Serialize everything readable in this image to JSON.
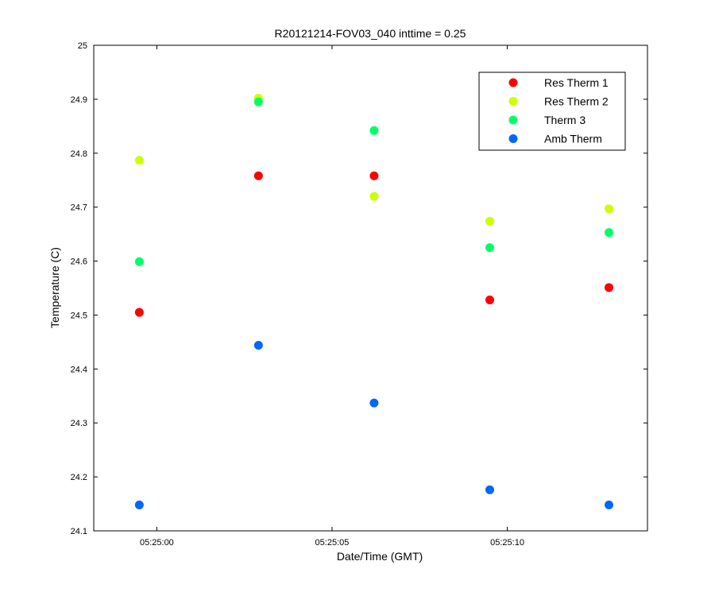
{
  "chart_data": {
    "type": "scatter",
    "title": "R20121214-FOV03_040 inttime = 0.25",
    "xlabel": "Date/Time (GMT)",
    "ylabel": "Temperature (C)",
    "xlim": [
      "05:24:58.2",
      "05:25:14.0"
    ],
    "ylim": [
      24.1,
      25.0
    ],
    "x_ticks": [
      "05:25:00",
      "05:25:05",
      "05:25:10"
    ],
    "y_ticks": [
      "24.1",
      "24.2",
      "24.3",
      "24.4",
      "24.5",
      "24.6",
      "24.7",
      "24.8",
      "24.9",
      "25"
    ],
    "grid": false,
    "legend_position": "top-right",
    "x": [
      "05:24:59.5",
      "05:25:02.9",
      "05:25:06.2",
      "05:25:09.5",
      "05:25:12.9"
    ],
    "series": [
      {
        "name": "Res Therm 1",
        "color": "#ff0000",
        "values": [
          24.505,
          24.758,
          24.758,
          24.528,
          24.551
        ]
      },
      {
        "name": "Res Therm 2",
        "color": "#ccff00",
        "values": [
          24.787,
          24.902,
          24.72,
          24.674,
          24.697
        ]
      },
      {
        "name": "Therm 3",
        "color": "#00ff66",
        "values": [
          24.599,
          24.895,
          24.842,
          24.625,
          24.653
        ]
      },
      {
        "name": "Amb Therm",
        "color": "#0066ff",
        "values": [
          24.148,
          24.444,
          24.337,
          24.176,
          24.148
        ]
      }
    ]
  }
}
